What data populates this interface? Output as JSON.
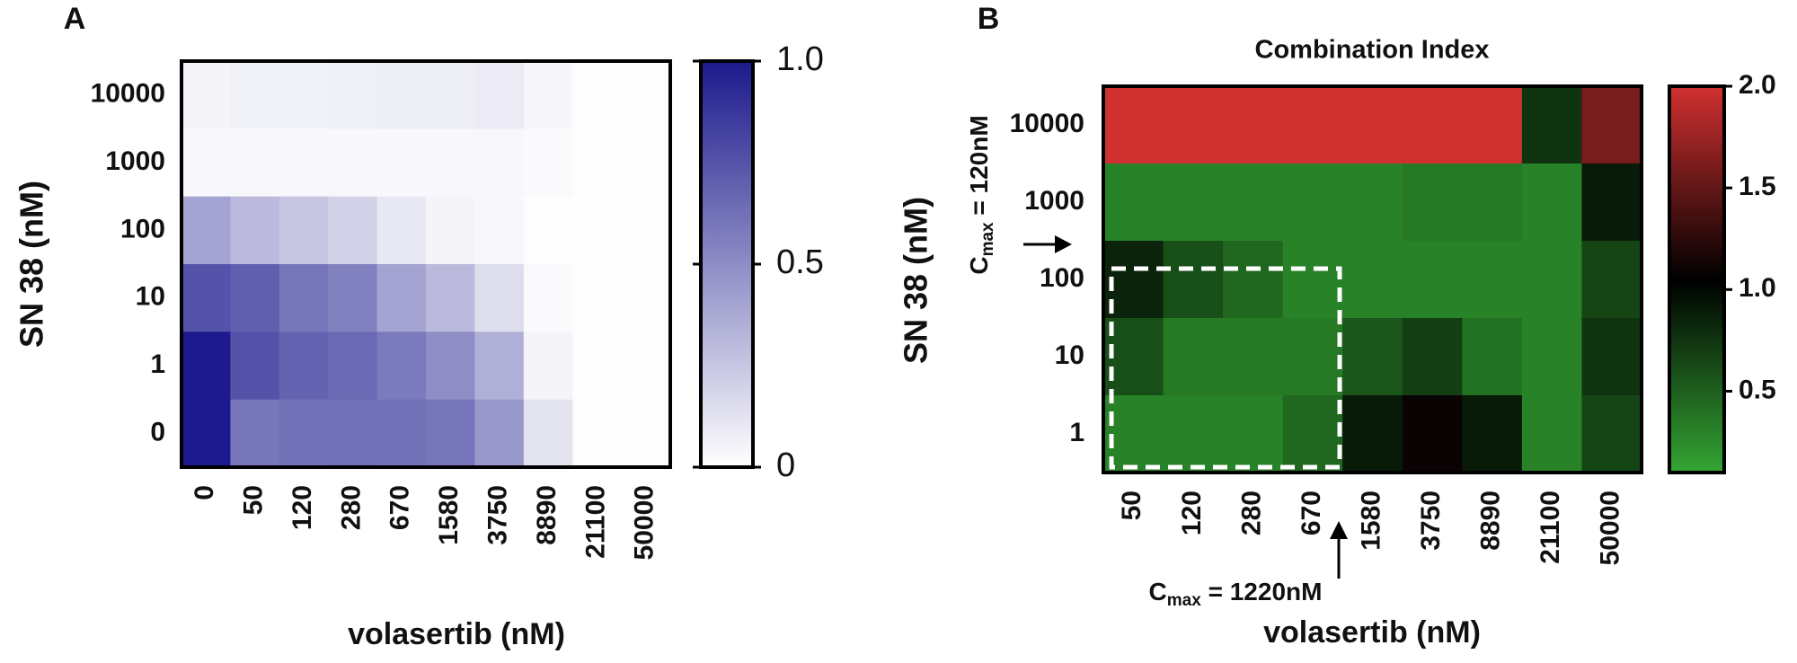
{
  "chart_data": [
    {
      "type": "heatmap",
      "panel_label": "A",
      "x_label": "volasertib (nM)",
      "y_label": "SN 38 (nM)",
      "x_categories": [
        "0",
        "50",
        "120",
        "280",
        "670",
        "1580",
        "3750",
        "8890",
        "21100",
        "50000"
      ],
      "y_categories": [
        "10000",
        "1000",
        "100",
        "10",
        "1",
        "0"
      ],
      "values": [
        [
          0.05,
          0.06,
          0.06,
          0.07,
          0.08,
          0.08,
          0.09,
          0.04,
          0.01,
          0.01
        ],
        [
          0.03,
          0.03,
          0.03,
          0.03,
          0.03,
          0.03,
          0.03,
          0.02,
          0.01,
          0.01
        ],
        [
          0.4,
          0.3,
          0.25,
          0.2,
          0.1,
          0.05,
          0.03,
          0.01,
          0.01,
          0.01
        ],
        [
          0.75,
          0.7,
          0.6,
          0.55,
          0.4,
          0.3,
          0.15,
          0.02,
          0.01,
          0.01
        ],
        [
          1,
          0.75,
          0.68,
          0.65,
          0.58,
          0.5,
          0.35,
          0.05,
          0.01,
          0.01
        ],
        [
          1,
          0.6,
          0.62,
          0.63,
          0.62,
          0.6,
          0.45,
          0.12,
          0.01,
          0.01
        ]
      ],
      "colormap": [
        "#ffffff",
        "#1c1a8c"
      ],
      "clim": [
        0,
        1
      ],
      "cticks": [
        0,
        0.5,
        {
          "value": 1,
          "label": "1.0"
        }
      ]
    },
    {
      "type": "heatmap",
      "panel_label": "B",
      "title": "Combination Index",
      "x_label": "volasertib (nM)",
      "y_label": "SN 38 (nM)",
      "x_categories": [
        "50",
        "120",
        "280",
        "670",
        "1580",
        "3750",
        "8890",
        "21100",
        "50000"
      ],
      "y_categories": [
        "10000",
        "1000",
        "100",
        "10",
        "1"
      ],
      "values": [
        [
          2,
          2,
          2,
          2,
          2,
          2,
          2,
          0.75,
          1.6
        ],
        [
          0.3,
          0.3,
          0.3,
          0.3,
          0.3,
          0.35,
          0.35,
          0.3,
          0.9
        ],
        [
          0.85,
          0.6,
          0.45,
          0.3,
          0.3,
          0.3,
          0.3,
          0.3,
          0.65
        ],
        [
          0.6,
          0.35,
          0.35,
          0.35,
          0.55,
          0.7,
          0.4,
          0.3,
          0.75
        ],
        [
          0.3,
          0.3,
          0.3,
          0.45,
          0.9,
          1.1,
          0.9,
          0.3,
          0.65
        ]
      ],
      "colormap": [
        "#33a533",
        "#000000",
        "#d13030"
      ],
      "clim": [
        0.1,
        {
          "value": 2,
          "label": "2.0"
        }
      ],
      "cticks": [
        0.5,
        {
          "value": 1,
          "label": "1.0"
        },
        1.5,
        {
          "value": 2,
          "label": "2.0"
        }
      ],
      "annotations": [
        {
          "parts": [
            "C",
            "max",
            " = 120nM"
          ]
        },
        {
          "parts": [
            "C",
            "max",
            " = 1220nM"
          ]
        }
      ]
    }
  ]
}
